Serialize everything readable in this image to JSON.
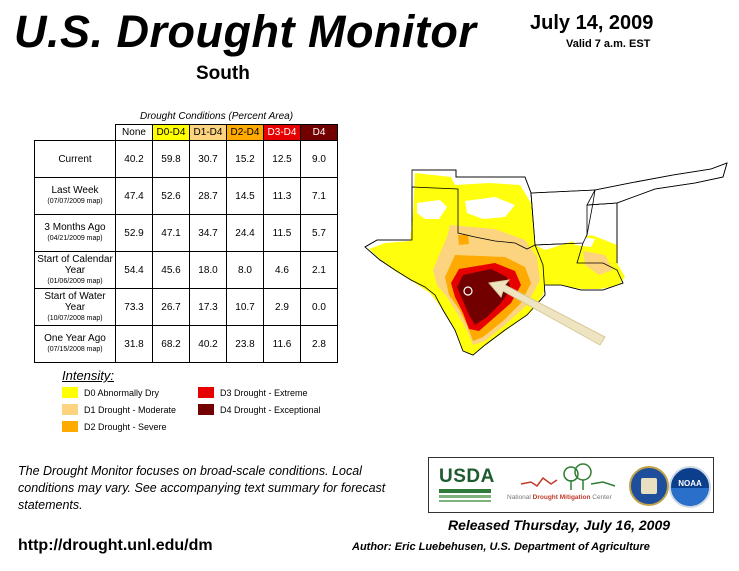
{
  "header": {
    "title": "U.S. Drought Monitor",
    "subtitle": "South",
    "date": "July 14, 2009",
    "valid": "Valid 7 a.m. EST"
  },
  "table": {
    "caption": "Drought Conditions (Percent Area)",
    "columns": [
      "None",
      "D0-D4",
      "D1-D4",
      "D2-D4",
      "D3-D4",
      "D4"
    ],
    "column_colors": [
      "#ffffff",
      "#ffff00",
      "#fcd37f",
      "#ffaa00",
      "#e60000",
      "#730000"
    ],
    "rows": [
      {
        "label": "Current",
        "sub": "",
        "values": [
          "40.2",
          "59.8",
          "30.7",
          "15.2",
          "12.5",
          "9.0"
        ]
      },
      {
        "label": "Last Week",
        "sub": "(07/07/2009 map)",
        "values": [
          "47.4",
          "52.6",
          "28.7",
          "14.5",
          "11.3",
          "7.1"
        ]
      },
      {
        "label": "3 Months Ago",
        "sub": "(04/21/2009 map)",
        "values": [
          "52.9",
          "47.1",
          "34.7",
          "24.4",
          "11.5",
          "5.7"
        ]
      },
      {
        "label": "Start of Calendar Year",
        "sub": "(01/06/2009 map)",
        "values": [
          "54.4",
          "45.6",
          "18.0",
          "8.0",
          "4.6",
          "2.1"
        ]
      },
      {
        "label": "Start of Water Year",
        "sub": "(10/07/2008 map)",
        "values": [
          "73.3",
          "26.7",
          "17.3",
          "10.7",
          "2.9",
          "0.0"
        ]
      },
      {
        "label": "One Year Ago",
        "sub": "(07/15/2008 map)",
        "values": [
          "31.8",
          "68.2",
          "40.2",
          "23.8",
          "11.6",
          "2.8"
        ]
      }
    ]
  },
  "legend": {
    "title": "Intensity:",
    "items": [
      {
        "label": "D0 Abnormally Dry",
        "color": "#ffff00"
      },
      {
        "label": "D1 Drought - Moderate",
        "color": "#fcd37f"
      },
      {
        "label": "D2 Drought - Severe",
        "color": "#ffaa00"
      },
      {
        "label": "D3 Drought - Extreme",
        "color": "#e60000"
      },
      {
        "label": "D4 Drought - Exceptional",
        "color": "#730000"
      }
    ]
  },
  "footer": {
    "note": "The Drought Monitor focuses on broad-scale conditions. Local conditions may vary. See accompanying text summary for forecast statements.",
    "url": "http://drought.unl.edu/dm",
    "released": "Released Thursday, July 16, 2009",
    "author": "Author: Eric Luebehusen, U.S. Department of Agriculture"
  },
  "logos": {
    "usda": "USDA",
    "ndmc_prefix": "National",
    "ndmc_name": "Drought Mitigation",
    "ndmc_suffix": "Center",
    "noaa": "NOAA"
  }
}
